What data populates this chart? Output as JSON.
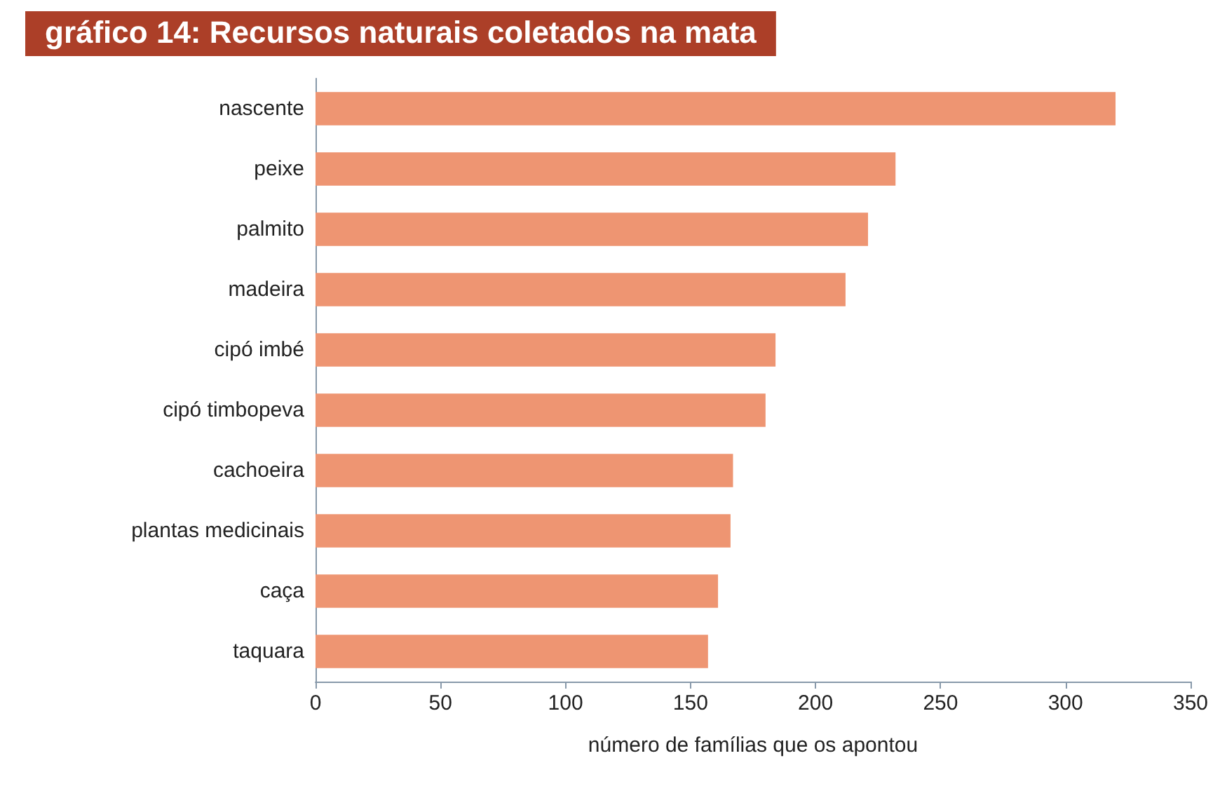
{
  "chart_data": {
    "type": "bar",
    "orientation": "horizontal",
    "title": "gráfico 14: Recursos naturais coletados na mata",
    "xlabel": "número de famílias que os apontou",
    "categories": [
      "nascente",
      "peixe",
      "palmito",
      "madeira",
      "cipó imbé",
      "cipó timbopeva",
      "cachoeira",
      "plantas medicinais",
      "caça",
      "taquara"
    ],
    "values": [
      320,
      232,
      221,
      212,
      184,
      180,
      167,
      166,
      161,
      157
    ],
    "color": "#ee9572",
    "xlim": [
      0,
      350
    ],
    "xticks": [
      0,
      50,
      100,
      150,
      200,
      250,
      300,
      350
    ]
  }
}
